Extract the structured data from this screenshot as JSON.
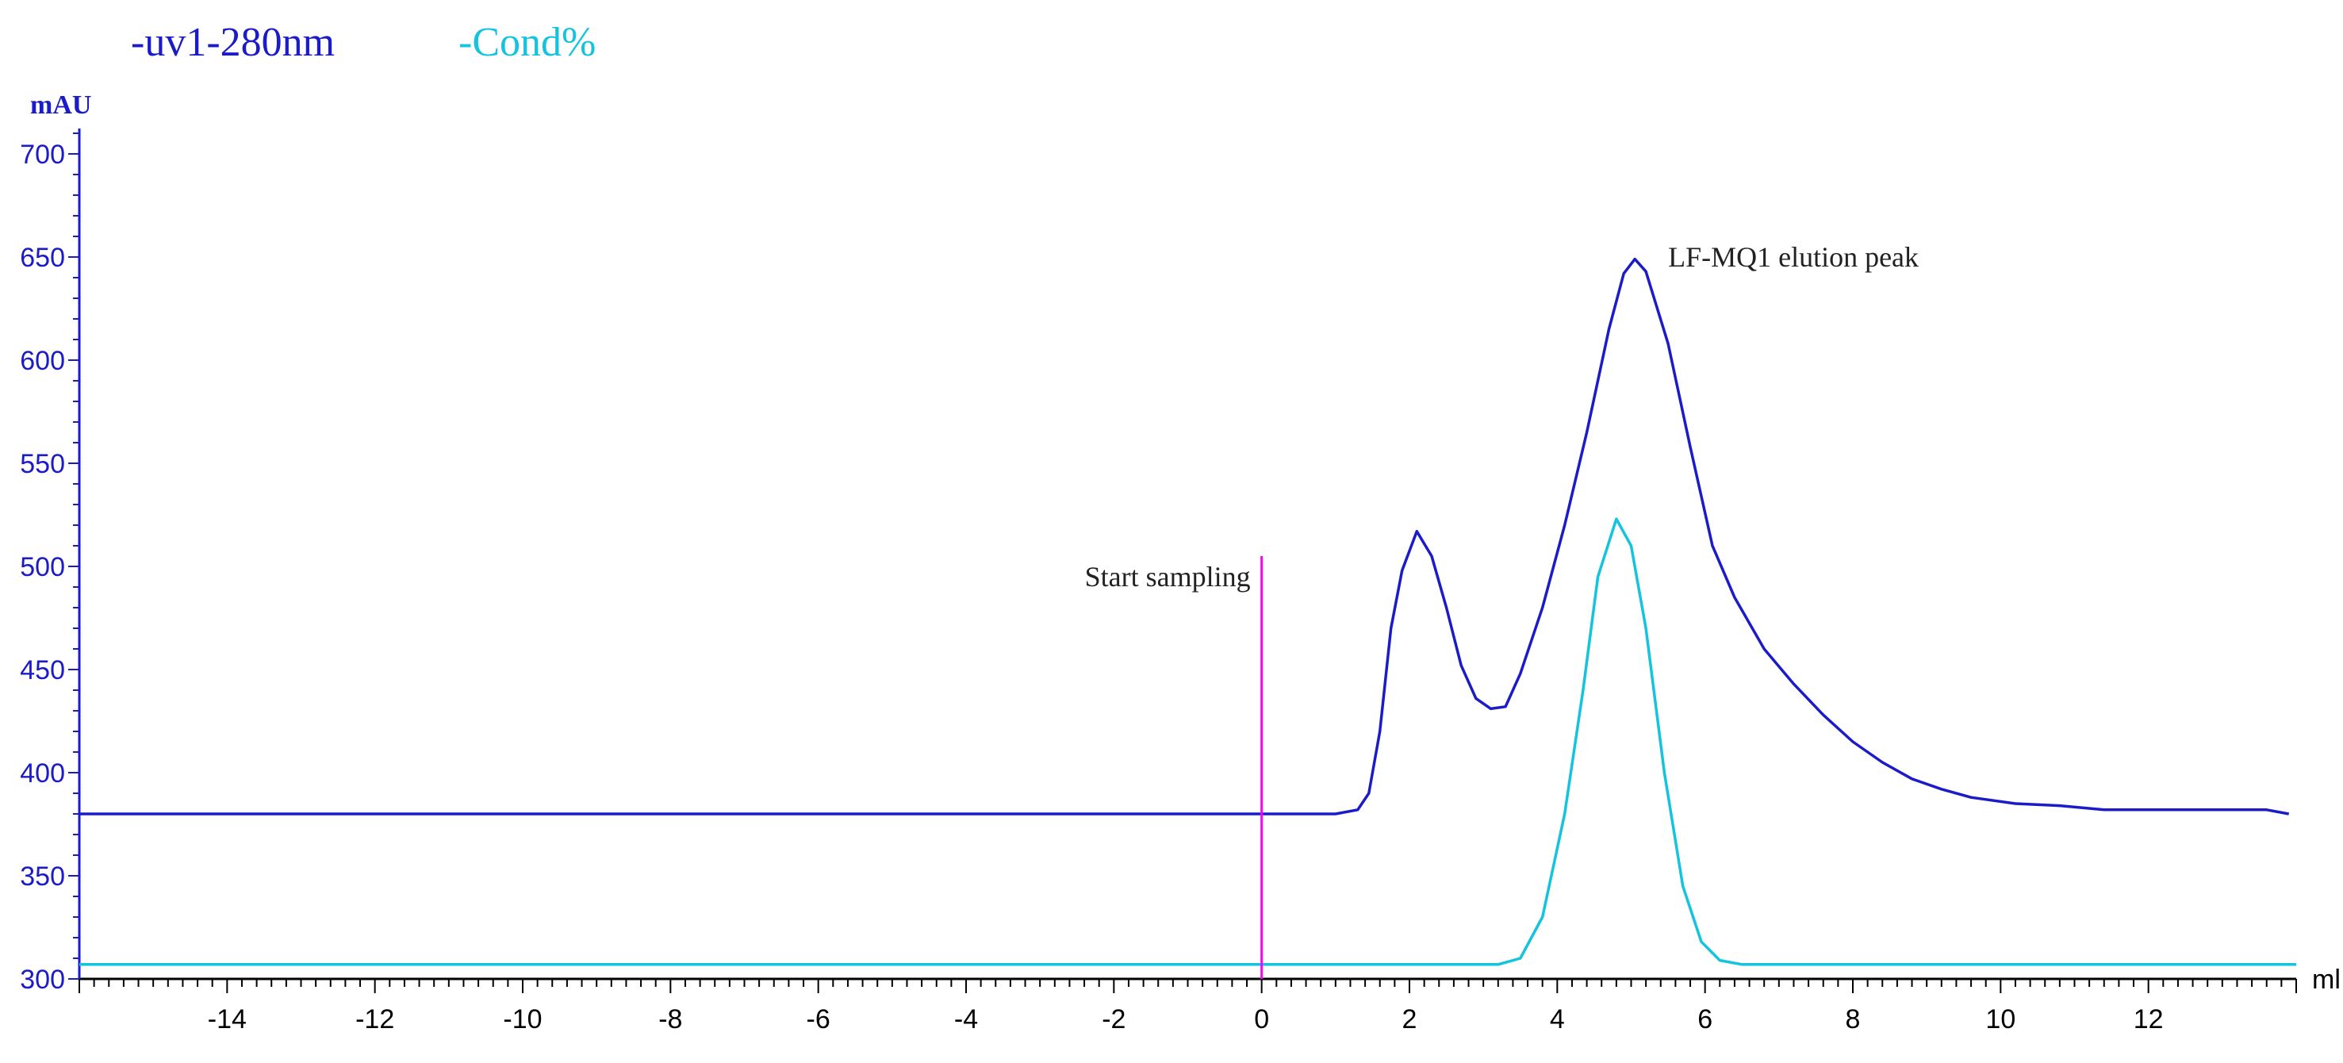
{
  "legend": {
    "uv": "-uv1-280nm",
    "cond": "-Cond%"
  },
  "colors": {
    "uv": "#1b1bc8",
    "cond": "#14c3de",
    "marker": "#ff00ff",
    "axis": "#1b1bc8",
    "xaxis": "#000000",
    "annotation": "#222222"
  },
  "chart_data": {
    "type": "line",
    "xlabel": "ml",
    "ylabel": "mAU",
    "xlim": [
      -16,
      14
    ],
    "ylim": [
      300,
      710
    ],
    "xticks": [
      -14,
      -12,
      -10,
      -8,
      -6,
      -4,
      -2,
      0,
      2,
      4,
      6,
      8,
      10,
      12
    ],
    "yticks": [
      300,
      350,
      400,
      450,
      500,
      550,
      600,
      650,
      700
    ],
    "grid": false,
    "series": [
      {
        "name": "-uv1-280nm",
        "color": "#1b1bc8",
        "points": [
          [
            -16,
            380
          ],
          [
            1.0,
            380
          ],
          [
            1.3,
            382
          ],
          [
            1.45,
            390
          ],
          [
            1.6,
            420
          ],
          [
            1.75,
            470
          ],
          [
            1.9,
            498
          ],
          [
            2.1,
            517
          ],
          [
            2.3,
            505
          ],
          [
            2.5,
            480
          ],
          [
            2.7,
            452
          ],
          [
            2.9,
            436
          ],
          [
            3.1,
            431
          ],
          [
            3.3,
            432
          ],
          [
            3.5,
            448
          ],
          [
            3.8,
            480
          ],
          [
            4.1,
            520
          ],
          [
            4.4,
            565
          ],
          [
            4.7,
            615
          ],
          [
            4.9,
            642
          ],
          [
            5.05,
            649
          ],
          [
            5.2,
            643
          ],
          [
            5.5,
            608
          ],
          [
            5.8,
            558
          ],
          [
            6.1,
            510
          ],
          [
            6.4,
            485
          ],
          [
            6.8,
            460
          ],
          [
            7.2,
            443
          ],
          [
            7.6,
            428
          ],
          [
            8.0,
            415
          ],
          [
            8.4,
            405
          ],
          [
            8.8,
            397
          ],
          [
            9.2,
            392
          ],
          [
            9.6,
            388
          ],
          [
            10.2,
            385
          ],
          [
            10.8,
            384
          ],
          [
            11.4,
            382
          ],
          [
            12.5,
            382
          ],
          [
            13.6,
            382
          ],
          [
            13.9,
            380
          ]
        ]
      },
      {
        "name": "-Cond%",
        "color": "#14c3de",
        "points": [
          [
            -16,
            307
          ],
          [
            3.2,
            307
          ],
          [
            3.5,
            310
          ],
          [
            3.8,
            330
          ],
          [
            4.1,
            380
          ],
          [
            4.35,
            440
          ],
          [
            4.55,
            495
          ],
          [
            4.8,
            523
          ],
          [
            5.0,
            510
          ],
          [
            5.2,
            470
          ],
          [
            5.45,
            400
          ],
          [
            5.7,
            345
          ],
          [
            5.95,
            318
          ],
          [
            6.2,
            309
          ],
          [
            6.5,
            307
          ],
          [
            14,
            307
          ]
        ]
      }
    ],
    "annotations": [
      {
        "text": "Start sampling",
        "x": 0,
        "y": 495
      },
      {
        "text": "LF-MQ1 elution peak",
        "x": 5.5,
        "y": 650
      }
    ],
    "marker": {
      "x": 0,
      "y_top": 505
    }
  }
}
